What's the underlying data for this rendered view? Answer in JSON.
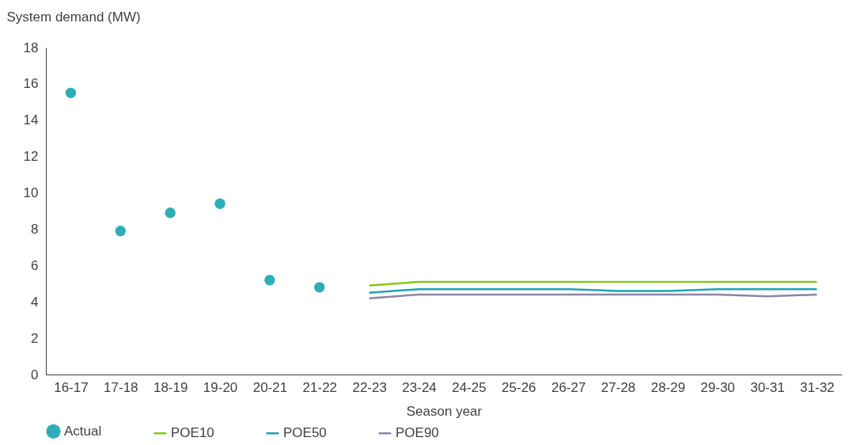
{
  "chart_data": {
    "type": "line",
    "xlabel": "Season year",
    "ylabel": "System demand (MW)",
    "categories": [
      "16-17",
      "17-18",
      "18-19",
      "19-20",
      "20-21",
      "21-22",
      "22-23",
      "23-24",
      "24-25",
      "25-26",
      "26-27",
      "27-28",
      "28-29",
      "29-30",
      "30-31",
      "31-32"
    ],
    "series": [
      {
        "name": "Actual",
        "type": "scatter",
        "marker": "circle",
        "color": "#2eaeb9",
        "values": [
          15.5,
          7.9,
          8.9,
          9.4,
          5.2,
          4.8,
          null,
          null,
          null,
          null,
          null,
          null,
          null,
          null,
          null,
          null
        ]
      },
      {
        "name": "POE10",
        "color": "#84c91c",
        "values": [
          null,
          null,
          null,
          null,
          null,
          null,
          4.9,
          5.1,
          5.1,
          5.1,
          5.1,
          5.1,
          5.1,
          5.1,
          5.1,
          5.1
        ]
      },
      {
        "name": "POE50",
        "color": "#1fa3b4",
        "values": [
          null,
          null,
          null,
          null,
          null,
          null,
          4.5,
          4.7,
          4.7,
          4.7,
          4.7,
          4.6,
          4.6,
          4.7,
          4.7,
          4.7
        ]
      },
      {
        "name": "POE90",
        "color": "#8a86a3",
        "values": [
          null,
          null,
          null,
          null,
          null,
          null,
          4.2,
          4.4,
          4.4,
          4.4,
          4.4,
          4.4,
          4.4,
          4.4,
          4.3,
          4.4
        ]
      }
    ],
    "ylim": [
      0,
      18
    ],
    "yticks": [
      0,
      2,
      4,
      6,
      8,
      10,
      12,
      14,
      16,
      18
    ],
    "grid": false,
    "legend": "bottom",
    "line_style": "solid"
  }
}
